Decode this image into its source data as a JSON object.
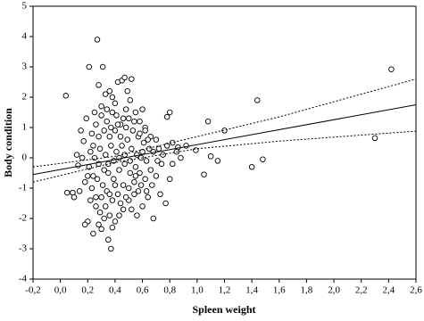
{
  "chart_data": {
    "type": "scatter",
    "x_label": "Spleen weight",
    "y_label": "Body condition",
    "xlim": [
      -0.2,
      2.6
    ],
    "xticks": [
      {
        "value": -0.2,
        "label": "-0,2"
      },
      {
        "value": 0,
        "label": "0,0"
      },
      {
        "value": 0.2,
        "label": "0,2"
      },
      {
        "value": 0.4,
        "label": "0,4"
      },
      {
        "value": 0.6,
        "label": "0,6"
      },
      {
        "value": 0.8,
        "label": "0,8"
      },
      {
        "value": 1.0,
        "label": "1,0"
      },
      {
        "value": 1.2,
        "label": "1,2"
      },
      {
        "value": 1.4,
        "label": "1,4"
      },
      {
        "value": 1.6,
        "label": "1,6"
      },
      {
        "value": 1.8,
        "label": "1,8"
      },
      {
        "value": 2.0,
        "label": "2,0"
      },
      {
        "value": 2.2,
        "label": "2,2"
      },
      {
        "value": 2.4,
        "label": "2,4"
      },
      {
        "value": 2.6,
        "label": "2,6"
      }
    ],
    "ylim": [
      -4,
      5
    ],
    "yticks": [
      -4,
      -3,
      -2,
      -1,
      0,
      1,
      2,
      3,
      4,
      5
    ],
    "grid": false,
    "color": "#000000",
    "points": {
      "x": [
        0.04,
        0.27,
        0.21,
        0.31,
        2.42,
        1.44,
        1.08,
        1.2,
        0.99,
        1.1,
        1.05,
        1.15,
        1.4,
        1.48,
        2.3,
        0.78,
        0.8,
        0.68,
        0.37,
        0.35,
        0.24,
        0.3,
        0.2,
        0.18,
        0.09,
        0.13,
        0.16,
        0.1,
        0.14,
        0.17,
        0.15,
        0.19,
        0.23,
        0.25,
        0.28,
        0.33,
        0.36,
        0.38,
        0.42,
        0.45,
        0.47,
        0.52,
        0.49,
        0.4,
        0.3,
        0.34,
        0.37,
        0.41,
        0.44,
        0.48,
        0.51,
        0.55,
        0.58,
        0.6,
        0.62,
        0.66,
        0.7,
        0.72,
        0.75,
        0.78,
        0.82,
        0.85,
        0.88,
        0.74,
        0.7,
        0.67,
        0.73,
        0.77,
        0.64,
        0.6,
        0.57,
        0.54,
        0.5,
        0.46,
        0.43,
        0.4,
        0.36,
        0.33,
        0.29,
        0.26,
        0.23,
        0.27,
        0.31,
        0.35,
        0.39,
        0.43,
        0.47,
        0.51,
        0.55,
        0.59,
        0.63,
        0.65,
        0.61,
        0.57,
        0.53,
        0.49,
        0.45,
        0.41,
        0.37,
        0.33,
        0.29,
        0.25,
        0.21,
        0.24,
        0.28,
        0.32,
        0.36,
        0.4,
        0.44,
        0.48,
        0.52,
        0.56,
        0.6,
        0.64,
        0.68,
        0.71,
        0.66,
        0.62,
        0.58,
        0.54,
        0.5,
        0.46,
        0.42,
        0.38,
        0.34,
        0.3,
        0.26,
        0.22,
        0.2,
        0.18,
        0.22,
        0.26,
        0.3,
        0.34,
        0.38,
        0.42,
        0.46,
        0.5,
        0.54,
        0.58,
        0.62,
        0.35,
        0.39,
        0.43,
        0.47,
        0.51,
        0.55,
        0.59,
        0.63,
        0.32,
        0.28,
        0.24,
        0.36,
        0.4,
        0.44,
        0.48,
        0.52,
        0.56,
        0.32,
        0.38,
        0.28,
        0.05,
        0.12,
        0.8,
        0.82,
        0.86,
        0.92
      ],
      "y": [
        2.05,
        3.9,
        3.0,
        3.0,
        2.92,
        1.9,
        1.2,
        0.9,
        0.25,
        0.05,
        -0.55,
        -0.1,
        -0.3,
        -0.05,
        0.65,
        1.35,
        1.5,
        -2.0,
        -3.0,
        -2.7,
        -2.5,
        -2.35,
        -2.1,
        -2.2,
        -1.15,
        -0.25,
        0.0,
        -1.3,
        -1.1,
        0.55,
        0.9,
        1.3,
        0.8,
        1.5,
        2.4,
        2.1,
        2.2,
        2.0,
        2.5,
        2.55,
        2.65,
        2.6,
        2.2,
        1.8,
        1.7,
        1.2,
        1.0,
        1.4,
        1.1,
        1.6,
        1.9,
        1.5,
        1.2,
        1.6,
        1.0,
        0.7,
        0.6,
        0.3,
        0.1,
        0.4,
        0.5,
        0.2,
        0.0,
        -0.2,
        -0.6,
        -0.9,
        -1.2,
        -1.5,
        -1.3,
        -1.6,
        -1.1,
        -0.8,
        -1.4,
        -1.7,
        -1.9,
        -2.1,
        -1.9,
        -1.6,
        -1.8,
        -1.3,
        -1.0,
        -0.7,
        -0.9,
        -0.5,
        -0.7,
        -0.4,
        -0.2,
        -0.5,
        -0.3,
        0.0,
        -0.1,
        0.3,
        0.5,
        0.7,
        0.9,
        0.6,
        0.4,
        0.2,
        0.4,
        0.1,
        0.3,
        0.0,
        -0.3,
        0.4,
        0.7,
        0.9,
        0.7,
        0.9,
        0.7,
        1.0,
        0.3,
        0.1,
        0.2,
        0.6,
        0.2,
        -0.1,
        -0.4,
        -0.7,
        -0.5,
        -1.2,
        -1.0,
        -0.9,
        -1.2,
        -1.4,
        -1.1,
        -1.3,
        -1.6,
        -1.4,
        -0.6,
        -0.8,
        0.2,
        1.1,
        1.4,
        1.6,
        1.5,
        1.1,
        1.3,
        1.3,
        1.2,
        0.8,
        0.9,
        -0.2,
        -0.1,
        0.0,
        0.1,
        -0.1,
        -0.6,
        -0.9,
        -1.1,
        -0.4,
        -0.2,
        -0.6,
        -1.2,
        -0.9,
        -1.5,
        -1.3,
        -1.7,
        -1.9,
        -2.0,
        -2.3,
        -2.2,
        -1.15,
        0.1,
        -0.7,
        -0.2,
        0.35,
        0.4
      ]
    },
    "fit": {
      "x": [
        -0.2,
        2.6
      ],
      "y": [
        -0.55,
        1.75
      ]
    },
    "upper_band": {
      "x": [
        -0.2,
        0.4,
        1.0,
        1.6,
        2.2,
        2.6
      ],
      "y": [
        -0.3,
        0.05,
        0.7,
        1.35,
        2.1,
        2.6
      ]
    },
    "lower_band": {
      "x": [
        -0.2,
        0.4,
        1.0,
        1.6,
        2.2,
        2.6
      ],
      "y": [
        -0.8,
        -0.15,
        0.3,
        0.55,
        0.75,
        0.88
      ]
    }
  }
}
